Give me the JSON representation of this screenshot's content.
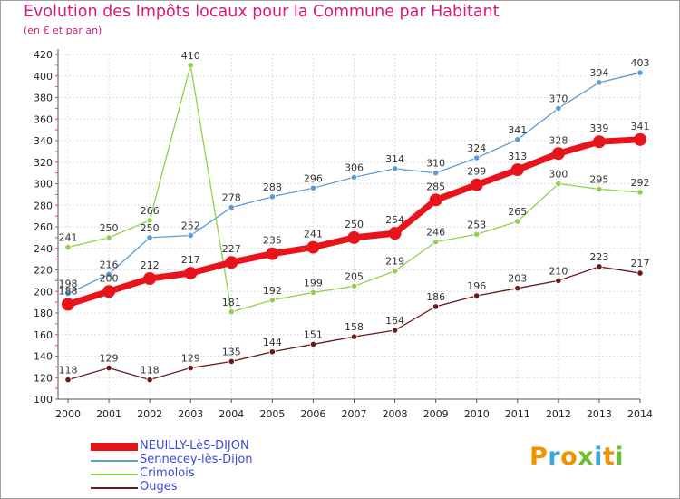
{
  "title": "Evolution des Impôts locaux pour la Commune par Habitant",
  "subtitle": "(en € et par an)",
  "logo": [
    "P",
    "r",
    "o",
    "x",
    "i",
    "t",
    "i"
  ],
  "logo_colors": [
    "#f39200",
    "#3aa7e0",
    "#f39200",
    "#6cbf2f",
    "#3aa7e0",
    "#f39200",
    "#6cbf2f"
  ],
  "chart_data": {
    "type": "line",
    "x": [
      "2000",
      "2001",
      "2002",
      "2003",
      "2004",
      "2005",
      "2006",
      "2007",
      "2008",
      "2009",
      "2010",
      "2011",
      "2012",
      "2013",
      "2014"
    ],
    "ylim": [
      100,
      420
    ],
    "yticks": [
      100,
      120,
      140,
      160,
      180,
      200,
      220,
      240,
      260,
      280,
      300,
      320,
      340,
      360,
      380,
      400,
      420
    ],
    "grid": true,
    "legend_position": "bottom-left",
    "series": [
      {
        "name": "NEUILLY-LèS-DIJON",
        "color": "#e8141c",
        "emphasis": true,
        "values": [
          188,
          200,
          212,
          217,
          227,
          235,
          241,
          250,
          254,
          285,
          299,
          313,
          328,
          339,
          341
        ]
      },
      {
        "name": "Sennecey-lès-Dijon",
        "color": "#5b9bd5",
        "emphasis": false,
        "values": [
          198,
          216,
          250,
          252,
          278,
          288,
          296,
          306,
          314,
          310,
          324,
          341,
          370,
          394,
          403
        ]
      },
      {
        "name": "Crimolois",
        "color": "#8fd14f",
        "emphasis": false,
        "values": [
          241,
          250,
          266,
          410,
          181,
          192,
          199,
          205,
          219,
          246,
          253,
          265,
          300,
          295,
          292
        ]
      },
      {
        "name": "Ouges",
        "color": "#6b1a1a",
        "emphasis": false,
        "values": [
          118,
          129,
          118,
          129,
          135,
          144,
          151,
          158,
          164,
          186,
          196,
          203,
          210,
          223,
          217
        ]
      }
    ]
  }
}
